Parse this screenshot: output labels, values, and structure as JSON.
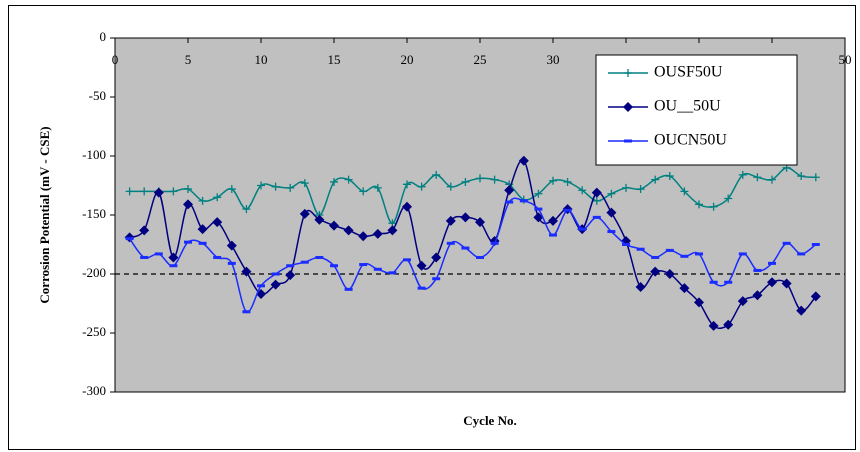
{
  "chart_data": {
    "type": "line",
    "ylabel": "Corrosion Potential (mV - CSE)",
    "xlabel": "Cycle No.",
    "x": [
      1,
      2,
      3,
      4,
      5,
      6,
      7,
      8,
      9,
      10,
      11,
      12,
      13,
      14,
      15,
      16,
      17,
      18,
      19,
      20,
      21,
      22,
      23,
      24,
      25,
      26,
      27,
      28,
      29,
      30,
      31,
      32,
      33,
      34,
      35,
      36,
      37,
      38,
      39,
      40,
      41,
      42,
      43,
      44,
      45,
      46,
      47,
      48
    ],
    "series": [
      {
        "name": "OUSF50U",
        "color": "#008080",
        "marker": "plus",
        "values": [
          -130,
          -130,
          -130,
          -130,
          -128,
          -138,
          -135,
          -128,
          -145,
          -125,
          -126,
          -127,
          -123,
          -150,
          -122,
          -120,
          -130,
          -127,
          -157,
          -124,
          -126,
          -116,
          -126,
          -122,
          -119,
          -120,
          -124,
          -137,
          -132,
          -121,
          -122,
          -129,
          -138,
          -132,
          -127,
          -128,
          -120,
          -117,
          -130,
          -141,
          -143,
          -136,
          -116,
          -118,
          -120,
          -110,
          -117,
          -118
        ]
      },
      {
        "name": "OU__50U",
        "color": "#000080",
        "marker": "diamond",
        "values": [
          -169,
          -163,
          -131,
          -186,
          -141,
          -162,
          -156,
          -176,
          -198,
          -217,
          -209,
          -201,
          -149,
          -154,
          -159,
          -163,
          -168,
          -166,
          -163,
          -143,
          -193,
          -186,
          -155,
          -152,
          -156,
          -172,
          -129,
          -104,
          -152,
          -155,
          -145,
          -162,
          -131,
          -148,
          -172,
          -211,
          -198,
          -200,
          -212,
          -224,
          -244,
          -243,
          -223,
          -218,
          -207,
          -208,
          -231,
          -219
        ]
      },
      {
        "name": "OUCN50U",
        "color": "#1a2cff",
        "marker": "dash",
        "values": [
          -170,
          -186,
          -183,
          -193,
          -173,
          -174,
          -186,
          -191,
          -232,
          -210,
          -200,
          -193,
          -190,
          -186,
          -193,
          -213,
          -192,
          -196,
          -199,
          -188,
          -212,
          -204,
          -174,
          -178,
          -186,
          -174,
          -139,
          -138,
          -145,
          -167,
          -146,
          -162,
          -152,
          -164,
          -175,
          -179,
          -186,
          -180,
          -185,
          -183,
          -207,
          -207,
          -183,
          -197,
          -191,
          -174,
          -183,
          -175
        ]
      }
    ],
    "xlim": [
      0,
      50
    ],
    "xticks": [
      0,
      5,
      10,
      15,
      20,
      25,
      30,
      35,
      40,
      45,
      50
    ],
    "ylim": [
      -300,
      0
    ],
    "yticks": [
      0,
      -50,
      -100,
      -150,
      -200,
      -250,
      -300
    ],
    "threshold": -200,
    "legend": "upper right"
  }
}
